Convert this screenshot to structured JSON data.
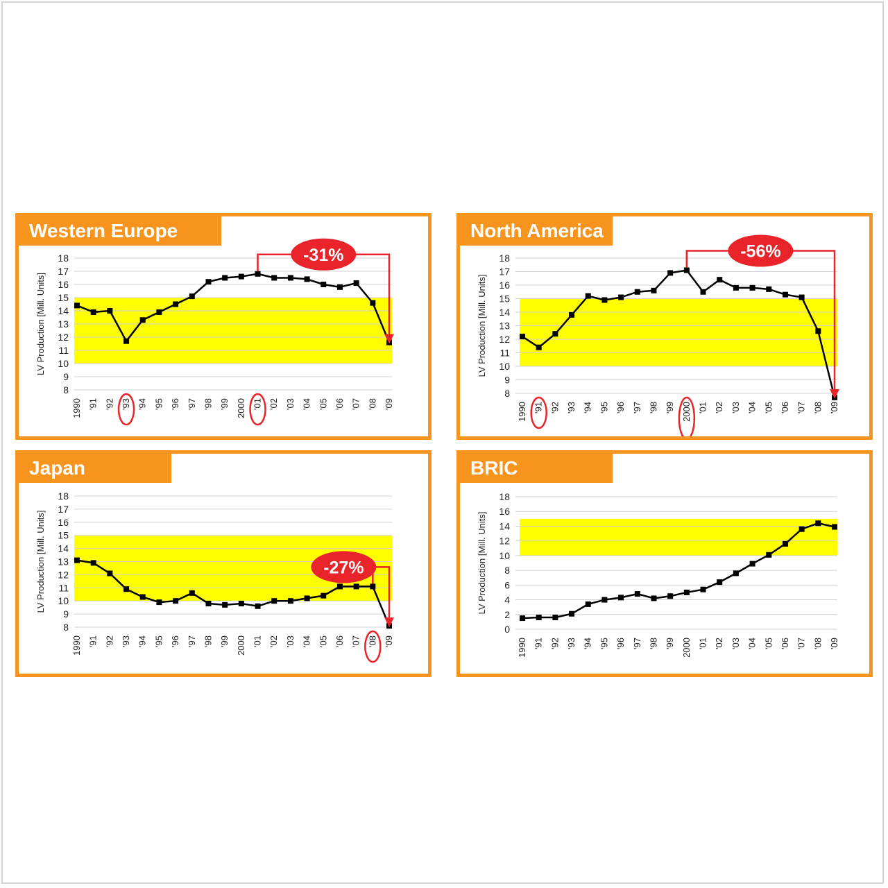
{
  "chart_data": [
    {
      "type": "line",
      "title": "Western Europe",
      "ylabel": "LV Production  [Mill. Units]",
      "ylim": [
        8,
        18
      ],
      "yticks": [
        8,
        9,
        10,
        11,
        12,
        13,
        14,
        15,
        16,
        17,
        18
      ],
      "band": [
        10,
        15
      ],
      "categories": [
        "1990",
        "'91",
        "'92",
        "'93",
        "'94",
        "'95",
        "'96",
        "'97",
        "'98",
        "'99",
        "2000",
        "'01",
        "'02",
        "'03",
        "'04",
        "'05",
        "'06",
        "'07",
        "'08",
        "'09"
      ],
      "values": [
        14.4,
        13.9,
        14.0,
        11.7,
        13.3,
        13.9,
        14.5,
        15.1,
        16.2,
        16.5,
        16.6,
        16.8,
        16.5,
        16.5,
        16.4,
        16.0,
        15.8,
        16.1,
        14.6,
        11.6
      ],
      "circled": [
        "'93",
        "'01"
      ],
      "annotation": {
        "label": "-31%",
        "from": "'01",
        "to": "'09"
      }
    },
    {
      "type": "line",
      "title": "North America",
      "ylabel": "LV Production  [Mill. Units]",
      "ylim": [
        8,
        18
      ],
      "yticks": [
        8,
        9,
        10,
        11,
        12,
        13,
        14,
        15,
        16,
        17,
        18
      ],
      "band": [
        10,
        15
      ],
      "categories": [
        "1990",
        "'91",
        "'92",
        "'93",
        "'94",
        "'95",
        "'96",
        "'97",
        "'98",
        "'99",
        "2000",
        "'01",
        "'02",
        "'03",
        "'04",
        "'05",
        "'06",
        "'07",
        "'08",
        "'09"
      ],
      "values": [
        12.2,
        11.4,
        12.4,
        13.8,
        15.2,
        14.9,
        15.1,
        15.5,
        15.6,
        16.9,
        17.1,
        15.5,
        16.4,
        15.8,
        15.8,
        15.7,
        15.3,
        15.1,
        12.6,
        7.7
      ],
      "circled": [
        "'91",
        "2000"
      ],
      "annotation": {
        "label": "-56%",
        "from": "2000",
        "to": "'09"
      }
    },
    {
      "type": "line",
      "title": "Japan",
      "ylabel": "LV Production  [Mill. Units]",
      "ylim": [
        8,
        18
      ],
      "yticks": [
        8,
        9,
        10,
        11,
        12,
        13,
        14,
        15,
        16,
        17,
        18
      ],
      "band": [
        10,
        15
      ],
      "categories": [
        "1990",
        "'91",
        "'92",
        "'93",
        "'94",
        "'95",
        "'96",
        "'97",
        "'98",
        "'99",
        "2000",
        "'01",
        "'02",
        "'03",
        "'04",
        "'05",
        "'06",
        "'07",
        "'08",
        "'09"
      ],
      "values": [
        13.1,
        12.9,
        12.1,
        10.9,
        10.3,
        9.9,
        10.0,
        10.6,
        9.8,
        9.7,
        9.8,
        9.6,
        10.0,
        10.0,
        10.2,
        10.4,
        11.1,
        11.1,
        11.1,
        8.1
      ],
      "circled": [
        "'08"
      ],
      "annotation": {
        "label": "-27%",
        "from": "'08",
        "to": "'09"
      }
    },
    {
      "type": "line",
      "title": "BRIC",
      "ylabel": "LV Production  [Mill. Units]",
      "ylim": [
        0,
        18
      ],
      "yticks": [
        0,
        2,
        4,
        6,
        8,
        10,
        12,
        14,
        16,
        18
      ],
      "band": [
        10,
        15
      ],
      "categories": [
        "1990",
        "'91",
        "'92",
        "'93",
        "'94",
        "'95",
        "'96",
        "'97",
        "'98",
        "'99",
        "2000",
        "'01",
        "'02",
        "'03",
        "'04",
        "'05",
        "'06",
        "'07",
        "'08",
        "'09"
      ],
      "values": [
        1.5,
        1.6,
        1.6,
        2.1,
        3.4,
        4.0,
        4.3,
        4.8,
        4.2,
        4.5,
        5.0,
        5.4,
        6.4,
        7.6,
        8.9,
        10.1,
        11.6,
        13.6,
        14.4,
        13.9
      ],
      "circled": [],
      "annotation": null
    }
  ]
}
